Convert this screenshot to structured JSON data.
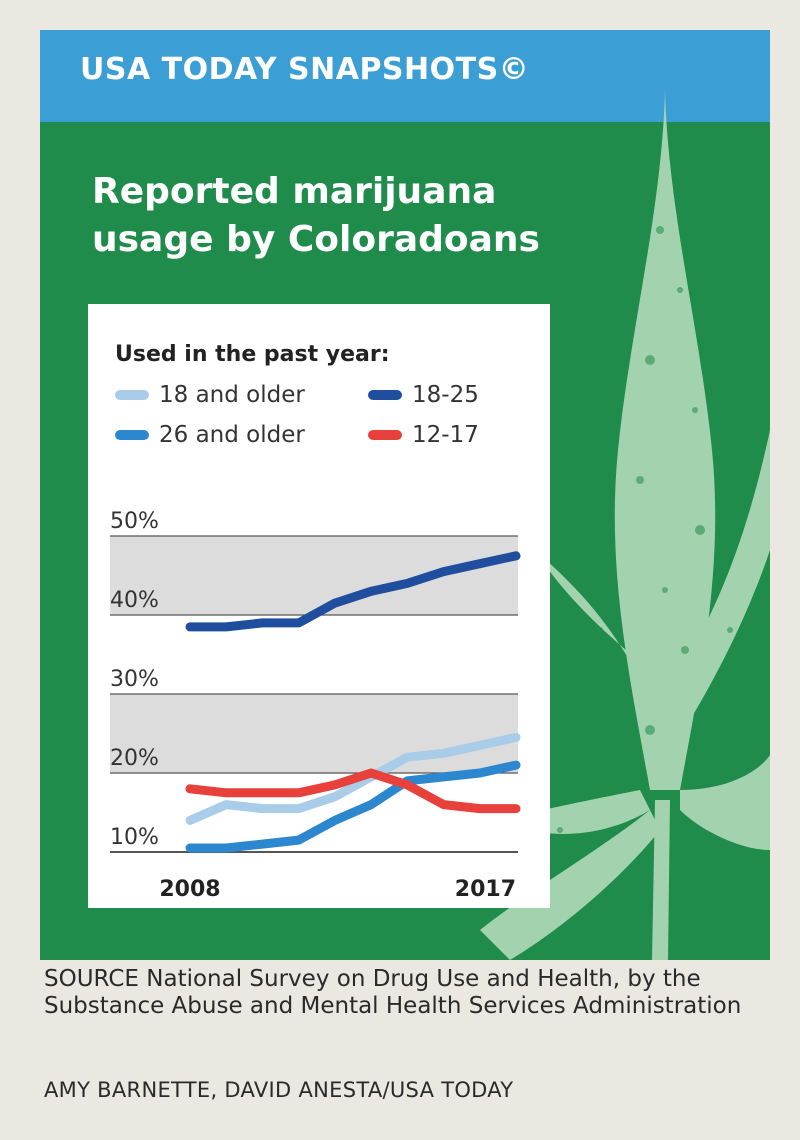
{
  "banner": {
    "label": "USA TODAY SNAPSHOTS©"
  },
  "colors": {
    "banner_blue": "#3b9fd6",
    "panel_green": "#1f8c4c",
    "leaf_green": "#a3d3ae"
  },
  "icons": {
    "background": "cannabis-leaf-icon"
  },
  "chart_data": {
    "type": "line",
    "title": "Reported marijuana usage by Coloradoans",
    "subtitle": "Used in the past year:",
    "x_tick_labels": [
      "2008",
      "2017"
    ],
    "x": [
      2008,
      2009,
      2010,
      2011,
      2012,
      2013,
      2014,
      2015,
      2016,
      2017
    ],
    "y_tick_labels": [
      "10%",
      "20%",
      "30%",
      "40%",
      "50%"
    ],
    "y_ticks": [
      10,
      20,
      30,
      40,
      50
    ],
    "ylim": [
      10,
      50
    ],
    "grid": true,
    "legend_position": "top",
    "series": [
      {
        "name": "18 and older",
        "color": "#a9cde8",
        "values": [
          14,
          16,
          15.5,
          15.5,
          17,
          19.5,
          22,
          22.5,
          23.5,
          24.5
        ]
      },
      {
        "name": "18-25",
        "color": "#1f4e9e",
        "values": [
          38.5,
          38.5,
          39,
          39,
          41.5,
          43,
          44,
          45.5,
          46.5,
          47.5
        ]
      },
      {
        "name": "26 and older",
        "color": "#2b87cf",
        "values": [
          10.5,
          10.5,
          11,
          11.5,
          14,
          16,
          19,
          19.5,
          20,
          21
        ]
      },
      {
        "name": "12-17",
        "color": "#e8403a",
        "values": [
          18,
          17.5,
          17.5,
          17.5,
          18.5,
          20,
          18.5,
          16,
          15.5,
          15.5
        ]
      }
    ]
  },
  "footer": {
    "source": "SOURCE  National Survey on Drug Use and Health, by the Substance Abuse and Mental Health Services Administration",
    "credit": "AMY BARNETTE, DAVID ANESTA/USA TODAY"
  }
}
